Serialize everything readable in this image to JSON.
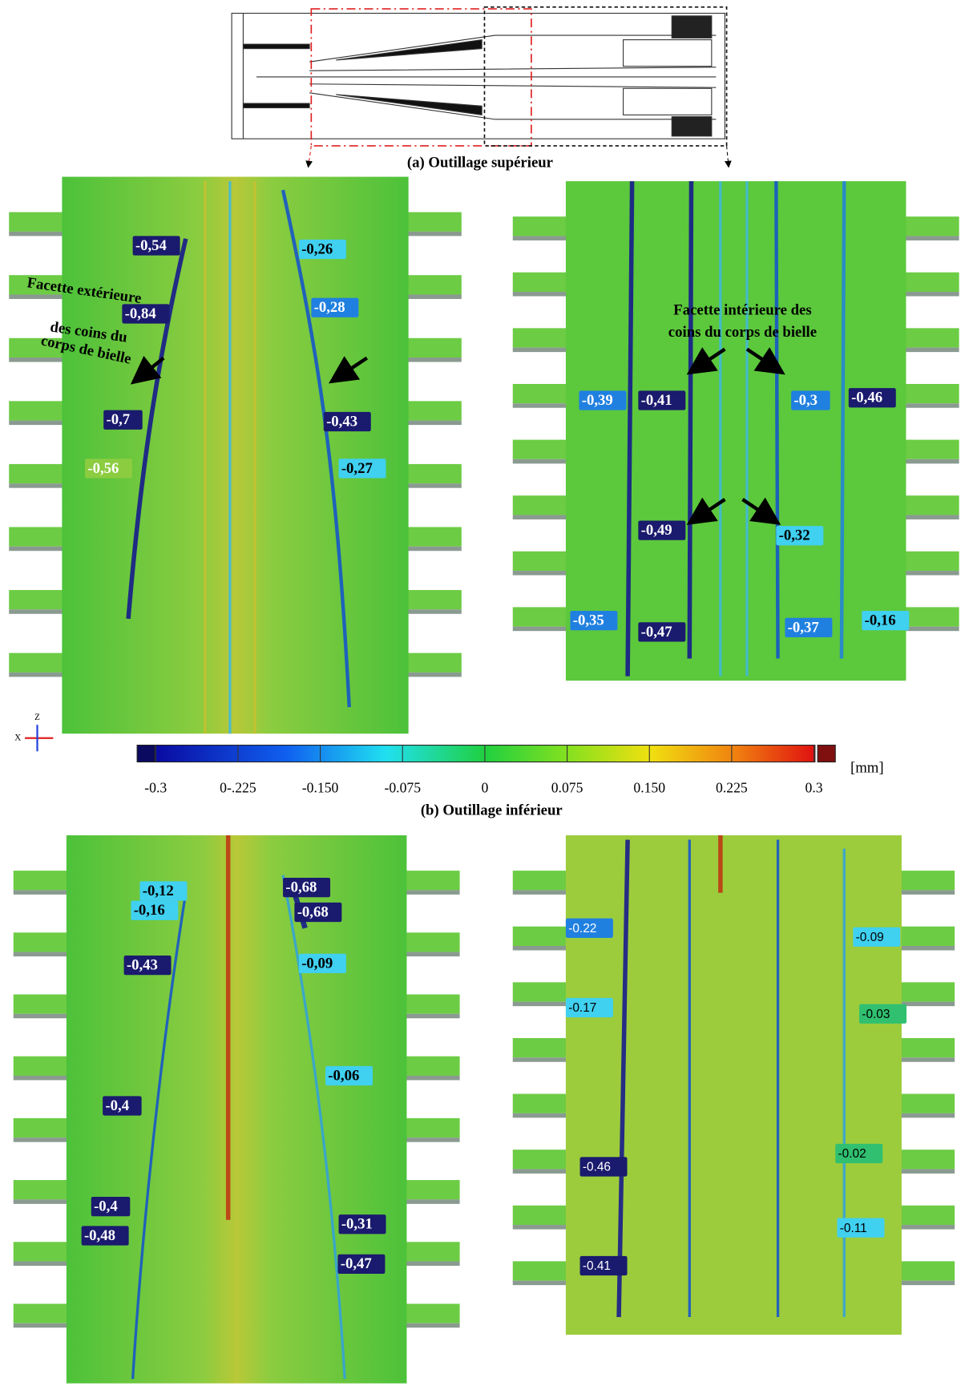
{
  "figure": {
    "caption_a": "(a) Outillage supérieur",
    "caption_b": "(b) Outillage inférieur",
    "colorbar": {
      "unit": "[mm]",
      "ticks": [
        "-0.3",
        "0-.225",
        "-0.150",
        "-0.075",
        "0",
        "0.075",
        "0.150",
        "0.225",
        "0.3"
      ]
    },
    "axes": [
      "Z",
      "X"
    ],
    "panels": [
      {
        "annotation": [
          "Facette extérieure",
          "des coins du",
          "corps de bielle"
        ],
        "labels": [
          "-0,54",
          "-0,26",
          "-0,84",
          "-0,28",
          "-0,7",
          "-0,43",
          "-0,56",
          "-0,27"
        ]
      },
      {
        "annotation": [
          "Facette intérieure des",
          "coins du corps de bielle"
        ],
        "labels": [
          "-0,39",
          "-0,41",
          "-0,3",
          "-0,46",
          "-0,49",
          "-0,32",
          "-0,35",
          "-0,47",
          "-0,37",
          "-0,16"
        ]
      },
      {
        "labels": [
          "-0,12",
          "-0,68",
          "-0,16",
          "-0,68",
          "-0,43",
          "-0,09",
          "-0,06",
          "-0,4",
          "-0,4",
          "-0,31",
          "-0,48",
          "-0,47"
        ]
      },
      {
        "labels": [
          "-0.22",
          "-0.09",
          "-0.17",
          "-0.03",
          "-0.02",
          "-0.46",
          "-0.11",
          "-0.41"
        ]
      }
    ]
  }
}
